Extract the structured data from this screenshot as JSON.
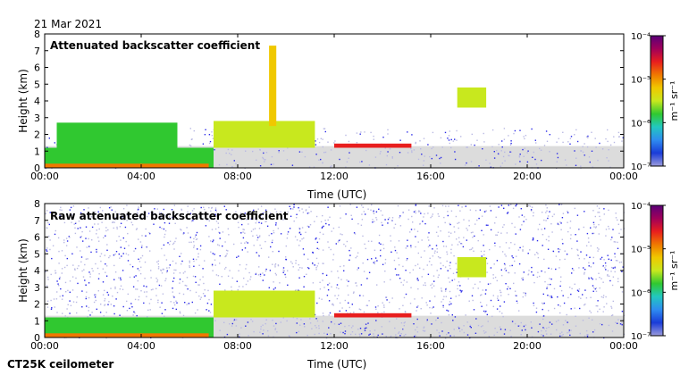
{
  "date": "21 Mar 2021",
  "instrument": "CT25K ceilometer",
  "colorbar": {
    "unit_label": "m⁻¹ sr⁻¹",
    "min_exponent": -7,
    "max_exponent": -4,
    "tick_labels": [
      "10⁻⁴",
      "10⁻⁵",
      "10⁻⁶",
      "10⁻⁷"
    ],
    "colors": [
      "#9b9bdc",
      "#1a3cd8",
      "#2e8cf0",
      "#22c8c0",
      "#30c830",
      "#c8e81e",
      "#f0c800",
      "#f07800",
      "#e81e1e",
      "#a0005a",
      "#5a0078"
    ]
  },
  "colors": {
    "low_signal": "#dcdcdc",
    "sparse_noise": "#b9b9e3",
    "noise_blue": "#2a2ae8"
  },
  "chart_data": [
    {
      "type": "heatmap",
      "title": "Attenuated backscatter coefficient",
      "xlabel": "Time (UTC)",
      "ylabel": "Height (km)",
      "x_ticks": [
        "00:00",
        "04:00",
        "08:00",
        "12:00",
        "16:00",
        "20:00",
        "00:00"
      ],
      "xlim_hours": [
        0,
        24
      ],
      "y_ticks": [
        0,
        1,
        2,
        3,
        4,
        5,
        6,
        7,
        8
      ],
      "ylim_km": [
        0,
        8
      ],
      "color_scale": "log",
      "noise_level": "low",
      "features": [
        {
          "name": "aerosol layer",
          "start_hour": 0,
          "end_hour": 7,
          "bottom_km": 0,
          "top_km": 1.2,
          "log10_value": -5.7
        },
        {
          "name": "near-surface maximum",
          "start_hour": 0,
          "end_hour": 6.8,
          "bottom_km": 0,
          "top_km": 0.25,
          "log10_value": -5.0
        },
        {
          "name": "cloud",
          "start_hour": 0.5,
          "end_hour": 5.5,
          "bottom_km": 1.0,
          "top_km": 2.7,
          "log10_value": -5.9
        },
        {
          "name": "cloud",
          "start_hour": 7,
          "end_hour": 11.2,
          "bottom_km": 1.2,
          "top_km": 2.8,
          "log10_value": -5.6
        },
        {
          "name": "cloud plume",
          "start_hour": 9.3,
          "end_hour": 9.6,
          "bottom_km": 2.5,
          "top_km": 7.3,
          "log10_value": -5.3
        },
        {
          "name": "cloud base",
          "start_hour": 12,
          "end_hour": 15.2,
          "bottom_km": 1.2,
          "top_km": 1.45,
          "log10_value": -4.6
        },
        {
          "name": "high cloud",
          "start_hour": 17.1,
          "end_hour": 18.3,
          "bottom_km": 3.6,
          "top_km": 4.8,
          "log10_value": -5.5
        }
      ]
    },
    {
      "type": "heatmap",
      "title": "Raw attenuated backscatter coefficient",
      "xlabel": "Time (UTC)",
      "ylabel": "Height (km)",
      "x_ticks": [
        "00:00",
        "04:00",
        "08:00",
        "12:00",
        "16:00",
        "20:00",
        "00:00"
      ],
      "xlim_hours": [
        0,
        24
      ],
      "y_ticks": [
        0,
        1,
        2,
        3,
        4,
        5,
        6,
        7,
        8
      ],
      "ylim_km": [
        0,
        8
      ],
      "color_scale": "log",
      "noise_level": "high",
      "features": [
        {
          "name": "aerosol layer",
          "start_hour": 0,
          "end_hour": 7,
          "bottom_km": 0,
          "top_km": 1.2,
          "log10_value": -5.7
        },
        {
          "name": "near-surface maximum",
          "start_hour": 0,
          "end_hour": 6.8,
          "bottom_km": 0,
          "top_km": 0.25,
          "log10_value": -5.0
        },
        {
          "name": "cloud",
          "start_hour": 7,
          "end_hour": 11.2,
          "bottom_km": 1.2,
          "top_km": 2.8,
          "log10_value": -5.6
        },
        {
          "name": "cloud base",
          "start_hour": 12,
          "end_hour": 15.2,
          "bottom_km": 1.2,
          "top_km": 1.45,
          "log10_value": -4.6
        },
        {
          "name": "high cloud",
          "start_hour": 17.1,
          "end_hour": 18.3,
          "bottom_km": 3.6,
          "top_km": 4.8,
          "log10_value": -5.5
        }
      ]
    }
  ]
}
